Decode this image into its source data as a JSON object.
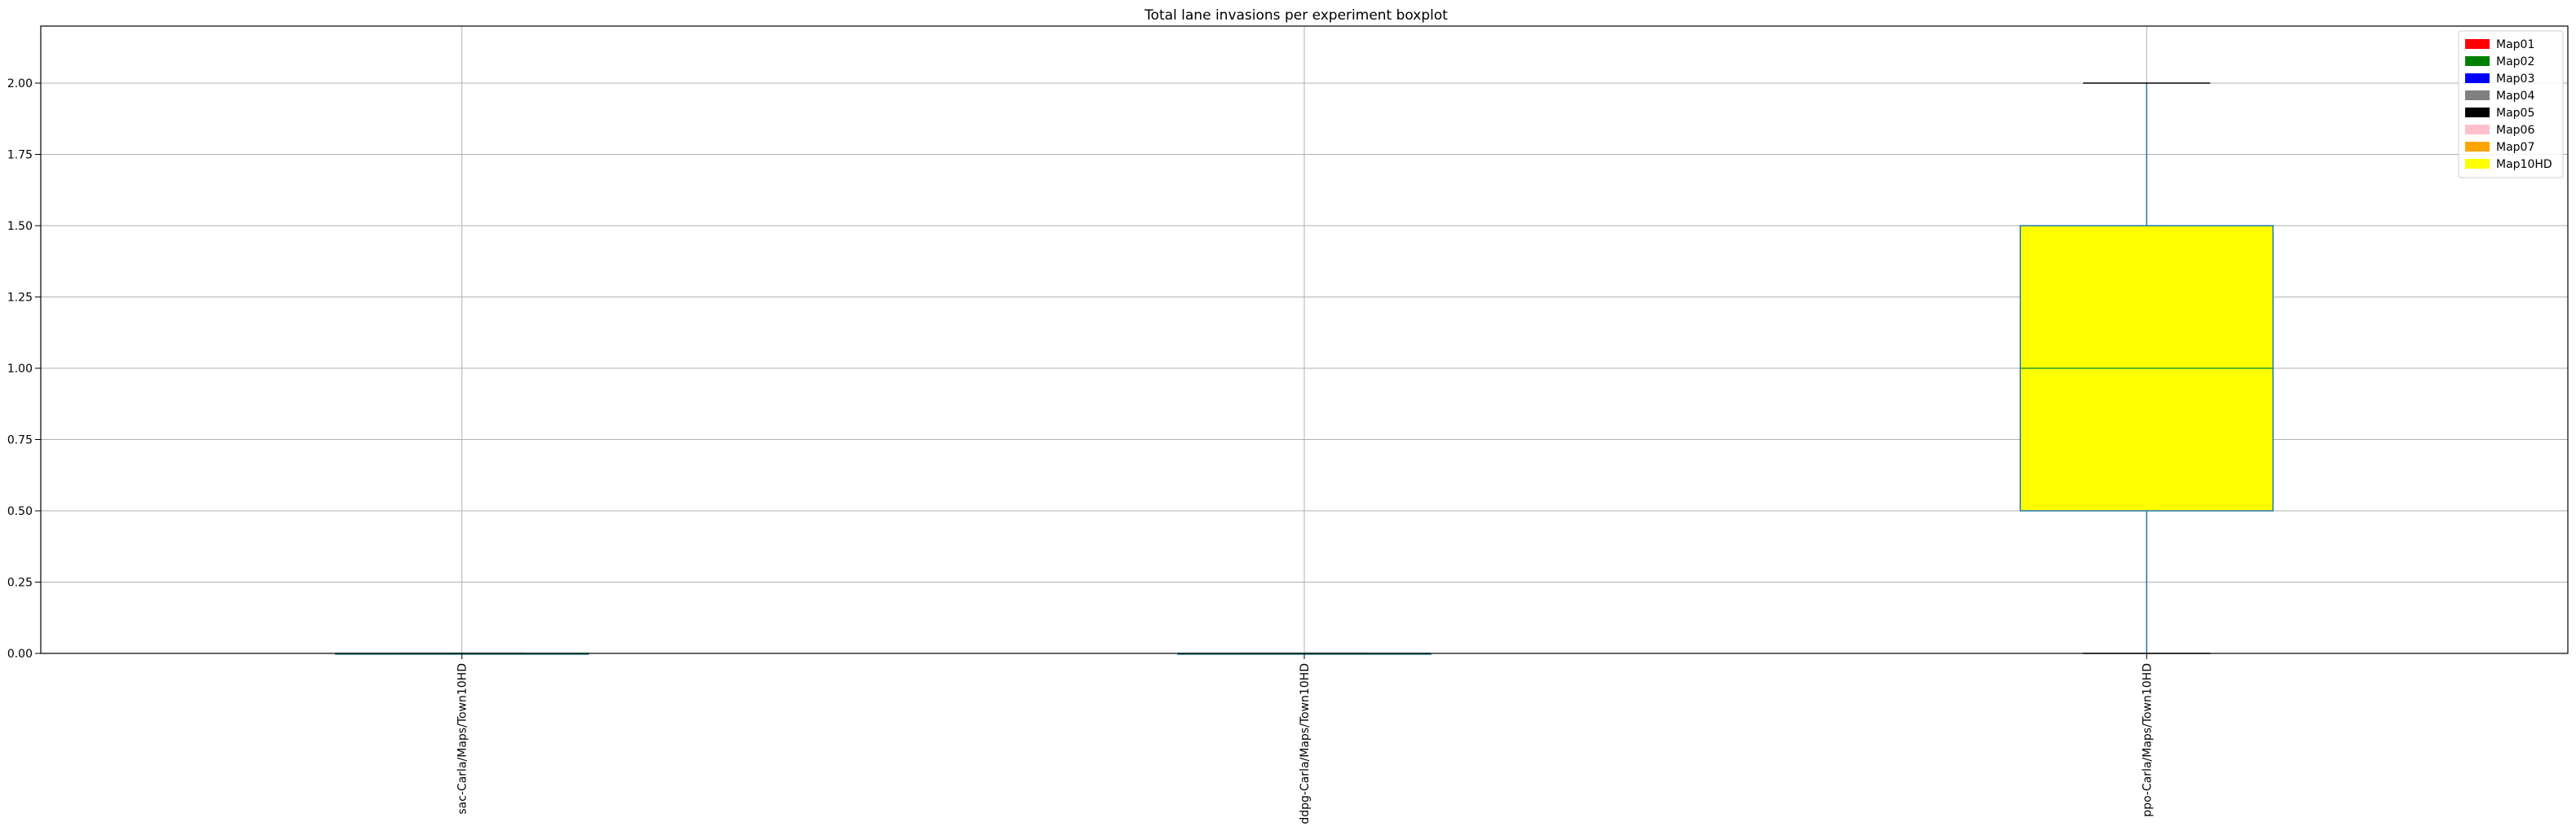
{
  "chart_data": {
    "type": "boxplot",
    "title": "Total lane invasions per experiment boxplot",
    "xlabel": "",
    "ylabel": "",
    "ylim": [
      0,
      2.2
    ],
    "yticks": [
      0,
      0.25,
      0.5,
      0.75,
      1.0,
      1.25,
      1.5,
      1.75,
      2.0
    ],
    "ytick_labels": [
      "0.00",
      "0.25",
      "0.50",
      "0.75",
      "1.00",
      "1.25",
      "1.50",
      "1.75",
      "2.00"
    ],
    "grid": true,
    "legend_position": "top-right",
    "categories": [
      "sac-Carla/Maps/Town10HD",
      "ddpg-Carla/Maps/Town10HD",
      "ppo-Carla/Maps/Town10HD"
    ],
    "boxes": [
      {
        "category": "sac-Carla/Maps/Town10HD",
        "whisker_low": 0,
        "q1": 0,
        "median": 0,
        "q3": 0,
        "whisker_high": 0,
        "color": "#ffff00"
      },
      {
        "category": "ddpg-Carla/Maps/Town10HD",
        "whisker_low": 0,
        "q1": 0,
        "median": 0,
        "q3": 0,
        "whisker_high": 0,
        "color": "#ffff00"
      },
      {
        "category": "ppo-Carla/Maps/Town10HD",
        "whisker_low": 0,
        "q1": 0.5,
        "median": 1.0,
        "q3": 1.5,
        "whisker_high": 2.0,
        "color": "#ffff00"
      }
    ],
    "legend": [
      {
        "label": "Map01",
        "color": "#ff0000"
      },
      {
        "label": "Map02",
        "color": "#008000"
      },
      {
        "label": "Map03",
        "color": "#0000ff"
      },
      {
        "label": "Map04",
        "color": "#808080"
      },
      {
        "label": "Map05",
        "color": "#000000"
      },
      {
        "label": "Map06",
        "color": "#ffc0cb"
      },
      {
        "label": "Map07",
        "color": "#ffa500"
      },
      {
        "label": "Map10HD",
        "color": "#ffff00"
      }
    ],
    "colors": {
      "box_edge": "#1f77b4",
      "median": "#2ca02c",
      "whisker": "#1f77b4",
      "grid": "#b0b0b0",
      "axes": "#000000"
    }
  }
}
